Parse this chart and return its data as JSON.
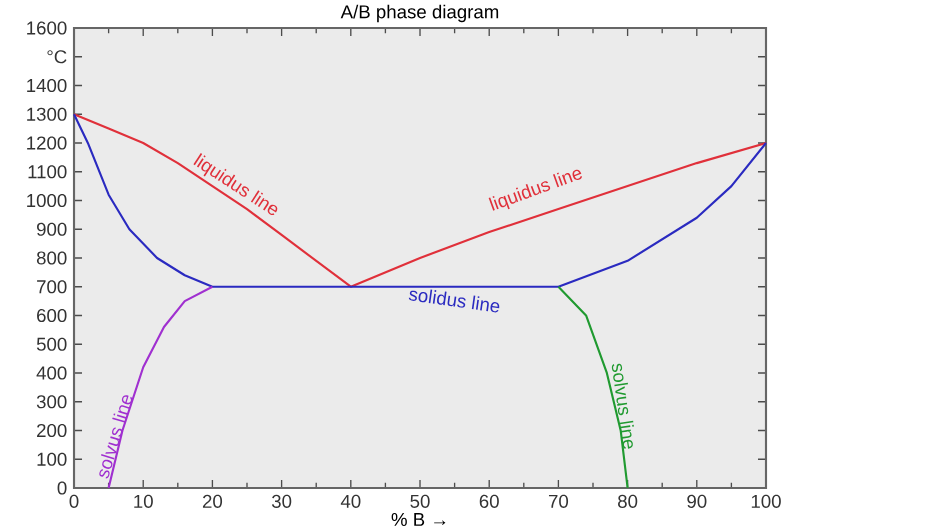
{
  "chart_data": {
    "type": "line",
    "title": "A/B phase diagram",
    "xlabel": "% B →",
    "xlim": [
      0,
      100
    ],
    "xticks": [
      0,
      10,
      20,
      30,
      40,
      50,
      60,
      70,
      80,
      90,
      100
    ],
    "ylim": [
      0,
      1600
    ],
    "yticks": [
      0,
      100,
      200,
      300,
      400,
      500,
      600,
      700,
      800,
      900,
      1000,
      1100,
      1200,
      1300,
      1400,
      {
        "value": 1500,
        "label": "°C"
      },
      1600
    ],
    "marker": "none",
    "line_style": "solid",
    "series": [
      {
        "color": "#e0303a",
        "x": [
          0,
          5,
          10,
          15,
          20,
          25,
          30,
          35,
          40,
          50,
          60,
          70,
          80,
          90,
          100
        ],
        "values": [
          1300,
          1250,
          1200,
          1130,
          1050,
          970,
          880,
          790,
          700,
          800,
          890,
          970,
          1050,
          1130,
          1200
        ]
      },
      {
        "color": "#2a2ac0",
        "x": [
          0,
          2,
          5,
          8,
          12,
          16,
          20,
          70,
          80,
          90,
          95,
          100
        ],
        "values": [
          1300,
          1200,
          1020,
          900,
          800,
          740,
          700,
          700,
          790,
          940,
          1050,
          1200
        ]
      },
      {
        "color": "#a030d0",
        "x": [
          5,
          7,
          10,
          13,
          16,
          20
        ],
        "values": [
          0,
          200,
          420,
          560,
          650,
          700
        ]
      },
      {
        "color": "#209a30",
        "x": [
          70,
          74,
          77,
          79,
          80
        ],
        "values": [
          700,
          600,
          400,
          200,
          0
        ]
      }
    ],
    "annotations": [
      "liquidus line",
      "liquidus line",
      "solidus line",
      "solvus line",
      "solvus line"
    ]
  }
}
